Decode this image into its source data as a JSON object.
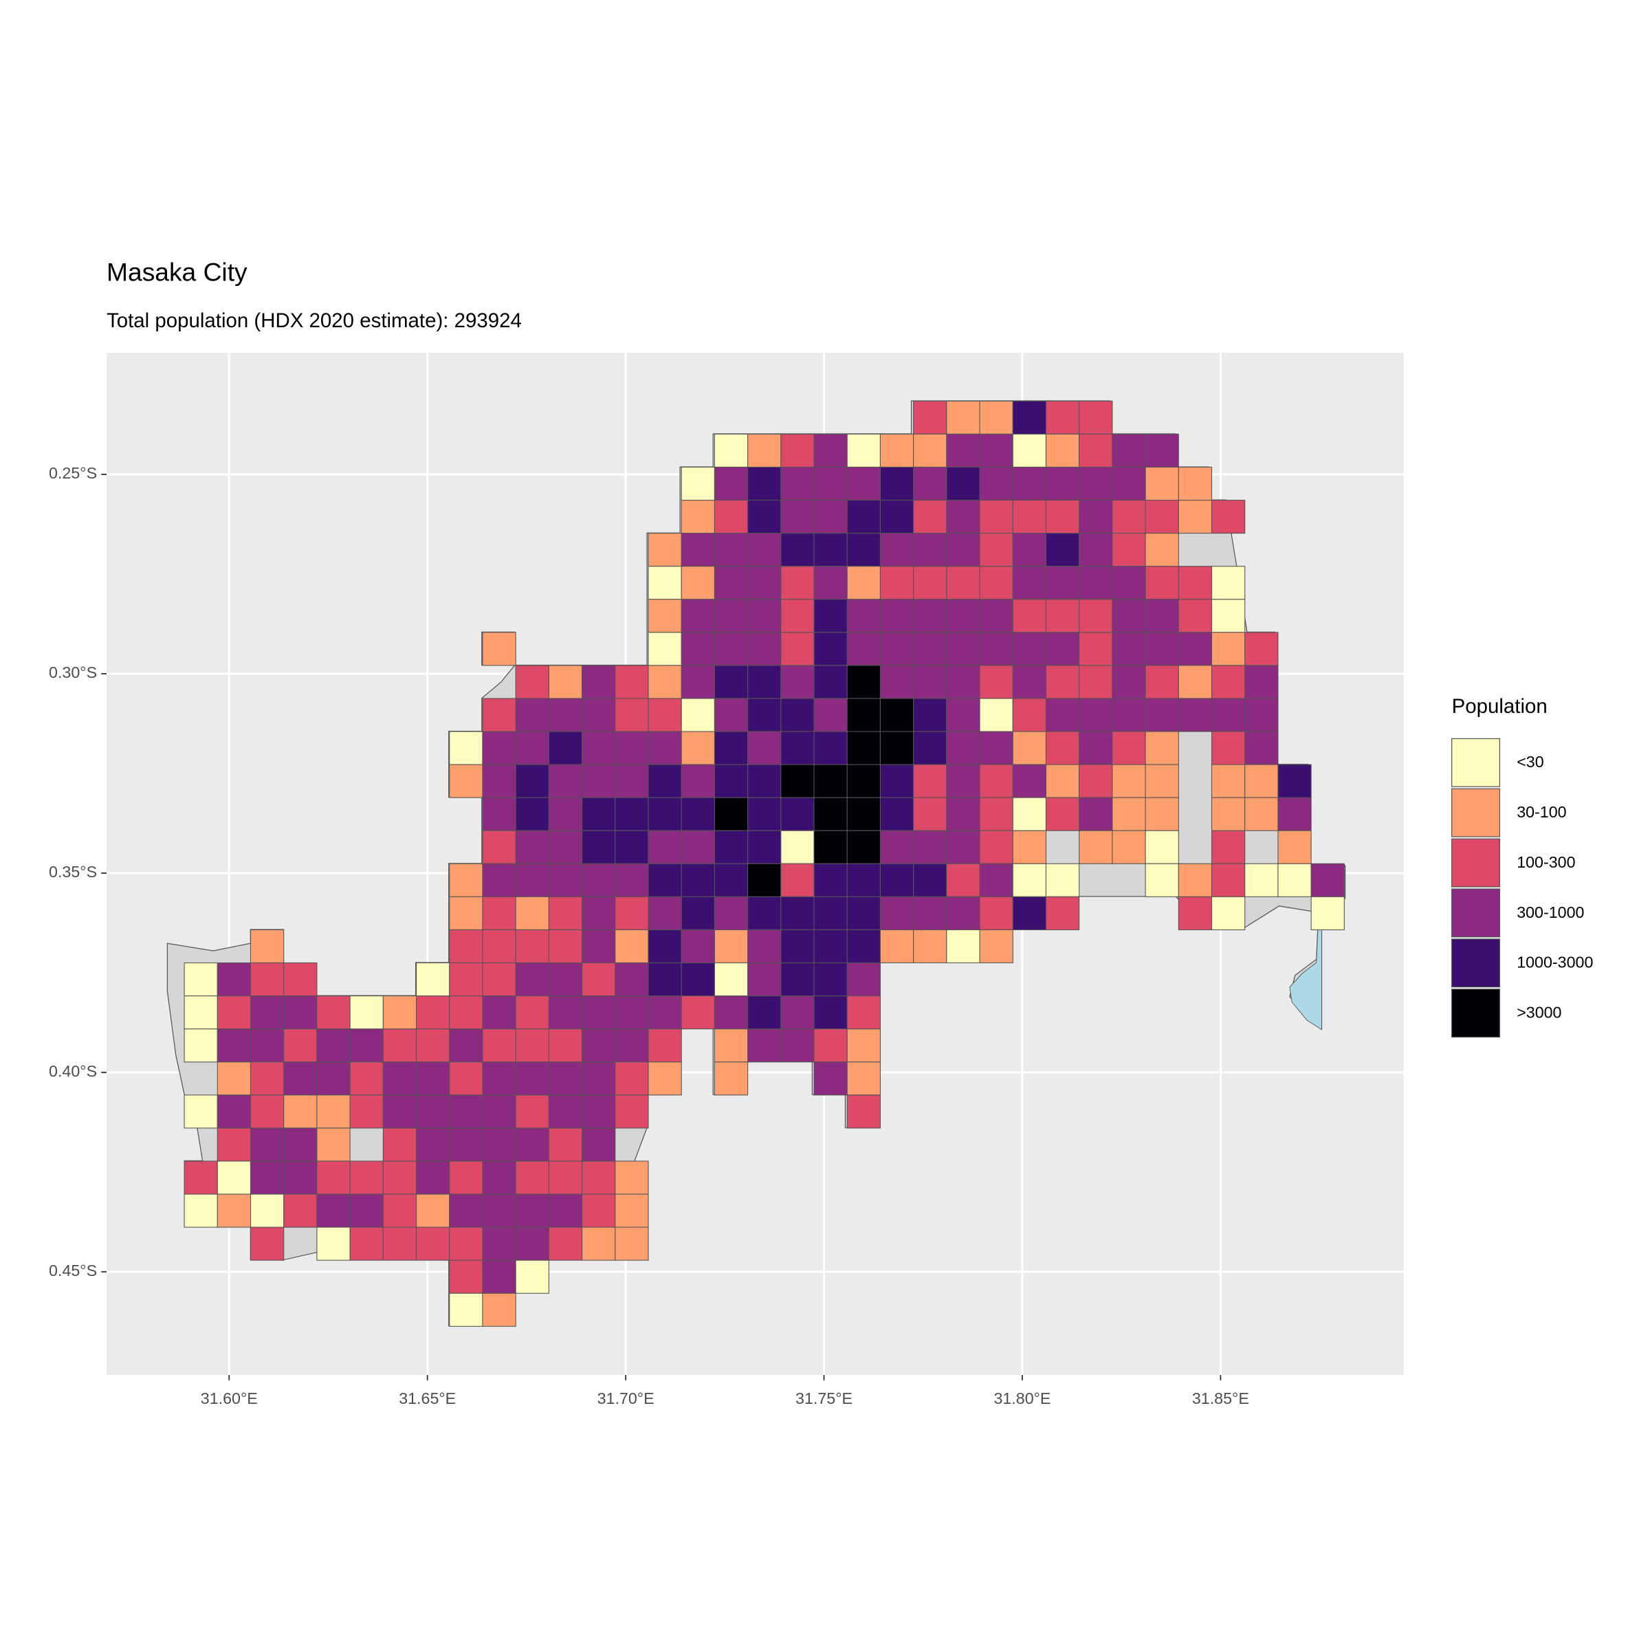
{
  "chart_data": {
    "type": "grid-map",
    "title": "Masaka City",
    "subtitle": "Total population (HDX 2020 estimate): 293924",
    "xlim": [
      31.5691,
      31.8962
    ],
    "ylim": [
      -0.2195,
      -0.4759
    ],
    "xticks": [
      {
        "value": 31.6,
        "label": "31.60°E"
      },
      {
        "value": 31.65,
        "label": "31.65°E"
      },
      {
        "value": 31.7,
        "label": "31.70°E"
      },
      {
        "value": 31.75,
        "label": "31.75°E"
      },
      {
        "value": 31.8,
        "label": "31.80°E"
      },
      {
        "value": 31.85,
        "label": "31.85°E"
      }
    ],
    "yticks": [
      {
        "value": -0.25,
        "label": "0.25°S"
      },
      {
        "value": -0.3,
        "label": "0.30°S"
      },
      {
        "value": -0.35,
        "label": "0.35°S"
      },
      {
        "value": -0.4,
        "label": "0.40°S"
      },
      {
        "value": -0.45,
        "label": "0.45°S"
      }
    ],
    "grid": true,
    "legend": {
      "title": "Population",
      "position": "right",
      "classes": [
        {
          "label": "<30",
          "color": "#fcfdbf"
        },
        {
          "label": "30-100",
          "color": "#fe9f6d"
        },
        {
          "label": "100-300",
          "color": "#de4968"
        },
        {
          "label": "300-1000",
          "color": "#8c2981"
        },
        {
          "label": "1000-3000",
          "color": "#3b0f70"
        },
        {
          "label": ">3000",
          "color": "#000004"
        }
      ]
    },
    "grid_cells": {
      "xlim": [
        31.5887,
        31.8812
      ],
      "ylim": [
        -0.2316,
        -0.4637
      ],
      "cells": [
        [
          null,
          null,
          null,
          null,
          null,
          null,
          null,
          null,
          null,
          null,
          null,
          null,
          null,
          null,
          null,
          null,
          null,
          null,
          null,
          null,
          null,
          null,
          2,
          1,
          1,
          4,
          2,
          2,
          null,
          null,
          null,
          null,
          null,
          null,
          null
        ],
        [
          null,
          null,
          null,
          null,
          null,
          null,
          null,
          null,
          null,
          null,
          null,
          null,
          null,
          null,
          null,
          null,
          0,
          1,
          2,
          3,
          0,
          1,
          1,
          3,
          3,
          0,
          1,
          2,
          3,
          3,
          null,
          null,
          null,
          null,
          null
        ],
        [
          null,
          null,
          null,
          null,
          null,
          null,
          null,
          null,
          null,
          null,
          null,
          null,
          null,
          null,
          null,
          0,
          3,
          4,
          3,
          3,
          3,
          4,
          3,
          4,
          3,
          3,
          3,
          3,
          3,
          1,
          1,
          null,
          null,
          null,
          null
        ],
        [
          null,
          null,
          null,
          null,
          null,
          null,
          null,
          null,
          null,
          null,
          null,
          null,
          null,
          null,
          null,
          1,
          2,
          4,
          3,
          3,
          4,
          4,
          2,
          3,
          2,
          2,
          2,
          3,
          2,
          2,
          1,
          2,
          null,
          null,
          null
        ],
        [
          null,
          null,
          null,
          null,
          null,
          null,
          null,
          null,
          null,
          null,
          null,
          null,
          null,
          null,
          1,
          3,
          3,
          3,
          4,
          4,
          4,
          3,
          3,
          3,
          2,
          3,
          4,
          3,
          2,
          1,
          null,
          null,
          null,
          null,
          null
        ],
        [
          null,
          null,
          null,
          null,
          null,
          null,
          null,
          null,
          null,
          null,
          null,
          null,
          null,
          null,
          0,
          1,
          3,
          3,
          2,
          3,
          1,
          2,
          2,
          2,
          2,
          3,
          3,
          3,
          3,
          2,
          2,
          0,
          null,
          null,
          null
        ],
        [
          null,
          null,
          null,
          null,
          null,
          null,
          null,
          null,
          null,
          null,
          null,
          null,
          null,
          null,
          1,
          3,
          3,
          3,
          2,
          4,
          3,
          3,
          3,
          3,
          3,
          2,
          2,
          2,
          3,
          3,
          2,
          0,
          null,
          null,
          null
        ],
        [
          null,
          null,
          null,
          null,
          null,
          null,
          null,
          null,
          null,
          1,
          null,
          null,
          null,
          null,
          0,
          3,
          3,
          3,
          2,
          4,
          3,
          3,
          3,
          3,
          3,
          3,
          3,
          2,
          3,
          3,
          3,
          1,
          2,
          null,
          null
        ],
        [
          null,
          null,
          null,
          null,
          null,
          null,
          null,
          null,
          null,
          null,
          2,
          1,
          3,
          2,
          1,
          3,
          4,
          4,
          3,
          4,
          5,
          3,
          3,
          3,
          2,
          3,
          2,
          2,
          3,
          2,
          1,
          2,
          3,
          null,
          null
        ],
        [
          null,
          null,
          null,
          null,
          null,
          null,
          null,
          null,
          null,
          2,
          3,
          3,
          3,
          2,
          2,
          0,
          3,
          4,
          4,
          3,
          5,
          5,
          4,
          3,
          0,
          2,
          3,
          3,
          3,
          3,
          3,
          3,
          3,
          null,
          null
        ],
        [
          null,
          null,
          null,
          null,
          null,
          null,
          null,
          null,
          0,
          3,
          3,
          4,
          3,
          3,
          3,
          1,
          4,
          3,
          4,
          4,
          5,
          5,
          4,
          3,
          3,
          1,
          2,
          3,
          2,
          1,
          null,
          2,
          3,
          null,
          null
        ],
        [
          null,
          null,
          null,
          null,
          null,
          null,
          null,
          null,
          1,
          3,
          4,
          3,
          3,
          3,
          4,
          3,
          4,
          4,
          5,
          5,
          5,
          4,
          2,
          3,
          2,
          3,
          1,
          2,
          1,
          1,
          null,
          1,
          1,
          4,
          null
        ],
        [
          null,
          null,
          null,
          null,
          null,
          null,
          null,
          null,
          null,
          3,
          4,
          3,
          4,
          4,
          4,
          4,
          5,
          4,
          4,
          5,
          5,
          4,
          2,
          3,
          2,
          0,
          2,
          3,
          1,
          1,
          null,
          1,
          1,
          3,
          null
        ],
        [
          null,
          null,
          null,
          null,
          null,
          null,
          null,
          null,
          null,
          2,
          3,
          3,
          4,
          4,
          3,
          3,
          4,
          4,
          0,
          5,
          5,
          3,
          3,
          3,
          2,
          1,
          null,
          1,
          1,
          0,
          null,
          2,
          null,
          1,
          null
        ],
        [
          null,
          null,
          null,
          null,
          null,
          null,
          null,
          null,
          1,
          3,
          3,
          3,
          3,
          3,
          4,
          4,
          4,
          5,
          2,
          4,
          4,
          4,
          4,
          2,
          3,
          0,
          0,
          null,
          null,
          0,
          1,
          2,
          0,
          0,
          3
        ],
        [
          null,
          null,
          null,
          null,
          null,
          null,
          null,
          null,
          1,
          2,
          1,
          2,
          3,
          2,
          3,
          4,
          3,
          4,
          4,
          4,
          4,
          3,
          3,
          3,
          2,
          4,
          2,
          null,
          null,
          null,
          2,
          0,
          null,
          null,
          0
        ],
        [
          null,
          null,
          1,
          null,
          null,
          null,
          null,
          null,
          2,
          2,
          2,
          2,
          3,
          1,
          4,
          3,
          1,
          3,
          4,
          4,
          4,
          1,
          1,
          0,
          1,
          null,
          null,
          null,
          null,
          null,
          null,
          null,
          null,
          null,
          null
        ],
        [
          0,
          3,
          2,
          2,
          null,
          null,
          null,
          0,
          2,
          2,
          3,
          3,
          2,
          3,
          4,
          4,
          0,
          3,
          4,
          4,
          3,
          null,
          null,
          null,
          null,
          null,
          null,
          null,
          null,
          null,
          null,
          null,
          null,
          null,
          null
        ],
        [
          0,
          2,
          3,
          3,
          2,
          0,
          1,
          2,
          2,
          3,
          2,
          3,
          3,
          3,
          3,
          2,
          3,
          4,
          3,
          4,
          2,
          null,
          null,
          null,
          null,
          null,
          null,
          null,
          null,
          null,
          null,
          null,
          null,
          null,
          null
        ],
        [
          0,
          3,
          3,
          2,
          3,
          3,
          2,
          2,
          3,
          2,
          2,
          2,
          3,
          3,
          2,
          null,
          1,
          3,
          3,
          2,
          1,
          null,
          null,
          null,
          null,
          null,
          null,
          null,
          null,
          null,
          null,
          null,
          null,
          null,
          null
        ],
        [
          null,
          1,
          2,
          3,
          3,
          2,
          3,
          3,
          2,
          3,
          3,
          3,
          3,
          2,
          1,
          null,
          1,
          null,
          null,
          3,
          1,
          null,
          null,
          null,
          null,
          null,
          null,
          null,
          null,
          null,
          null,
          null,
          null,
          null,
          null
        ],
        [
          0,
          3,
          2,
          1,
          1,
          2,
          3,
          3,
          3,
          3,
          2,
          3,
          3,
          2,
          null,
          null,
          null,
          null,
          null,
          null,
          2,
          null,
          null,
          null,
          null,
          null,
          null,
          null,
          null,
          null,
          null,
          null,
          null,
          null,
          null
        ],
        [
          null,
          2,
          3,
          3,
          1,
          null,
          2,
          3,
          3,
          3,
          3,
          2,
          3,
          null,
          null,
          null,
          null,
          null,
          null,
          null,
          null,
          null,
          null,
          null,
          null,
          null,
          null,
          null,
          null,
          null,
          null,
          null,
          null,
          null,
          null
        ],
        [
          2,
          0,
          3,
          3,
          2,
          2,
          2,
          3,
          2,
          3,
          2,
          2,
          2,
          1,
          null,
          null,
          null,
          null,
          null,
          null,
          null,
          null,
          null,
          null,
          null,
          null,
          null,
          null,
          null,
          null,
          null,
          null,
          null,
          null,
          null
        ],
        [
          0,
          1,
          0,
          2,
          3,
          3,
          2,
          1,
          3,
          3,
          3,
          3,
          2,
          1,
          null,
          null,
          null,
          null,
          null,
          null,
          null,
          null,
          null,
          null,
          null,
          null,
          null,
          null,
          null,
          null,
          null,
          null,
          null,
          null,
          null
        ],
        [
          null,
          null,
          2,
          null,
          0,
          2,
          2,
          2,
          2,
          3,
          3,
          2,
          1,
          1,
          null,
          null,
          null,
          null,
          null,
          null,
          null,
          null,
          null,
          null,
          null,
          null,
          null,
          null,
          null,
          null,
          null,
          null,
          null,
          null,
          null
        ],
        [
          null,
          null,
          null,
          null,
          null,
          null,
          null,
          null,
          2,
          3,
          0,
          null,
          null,
          null,
          null,
          null,
          null,
          null,
          null,
          null,
          null,
          null,
          null,
          null,
          null,
          null,
          null,
          null,
          null,
          null,
          null,
          null,
          null,
          null,
          null
        ],
        [
          null,
          null,
          null,
          null,
          null,
          null,
          null,
          null,
          0,
          1,
          null,
          null,
          null,
          null,
          null,
          null,
          null,
          null,
          null,
          null,
          null,
          null,
          null,
          null,
          null,
          null,
          null,
          null,
          null,
          null,
          null,
          null,
          null,
          null,
          null
        ]
      ]
    }
  }
}
